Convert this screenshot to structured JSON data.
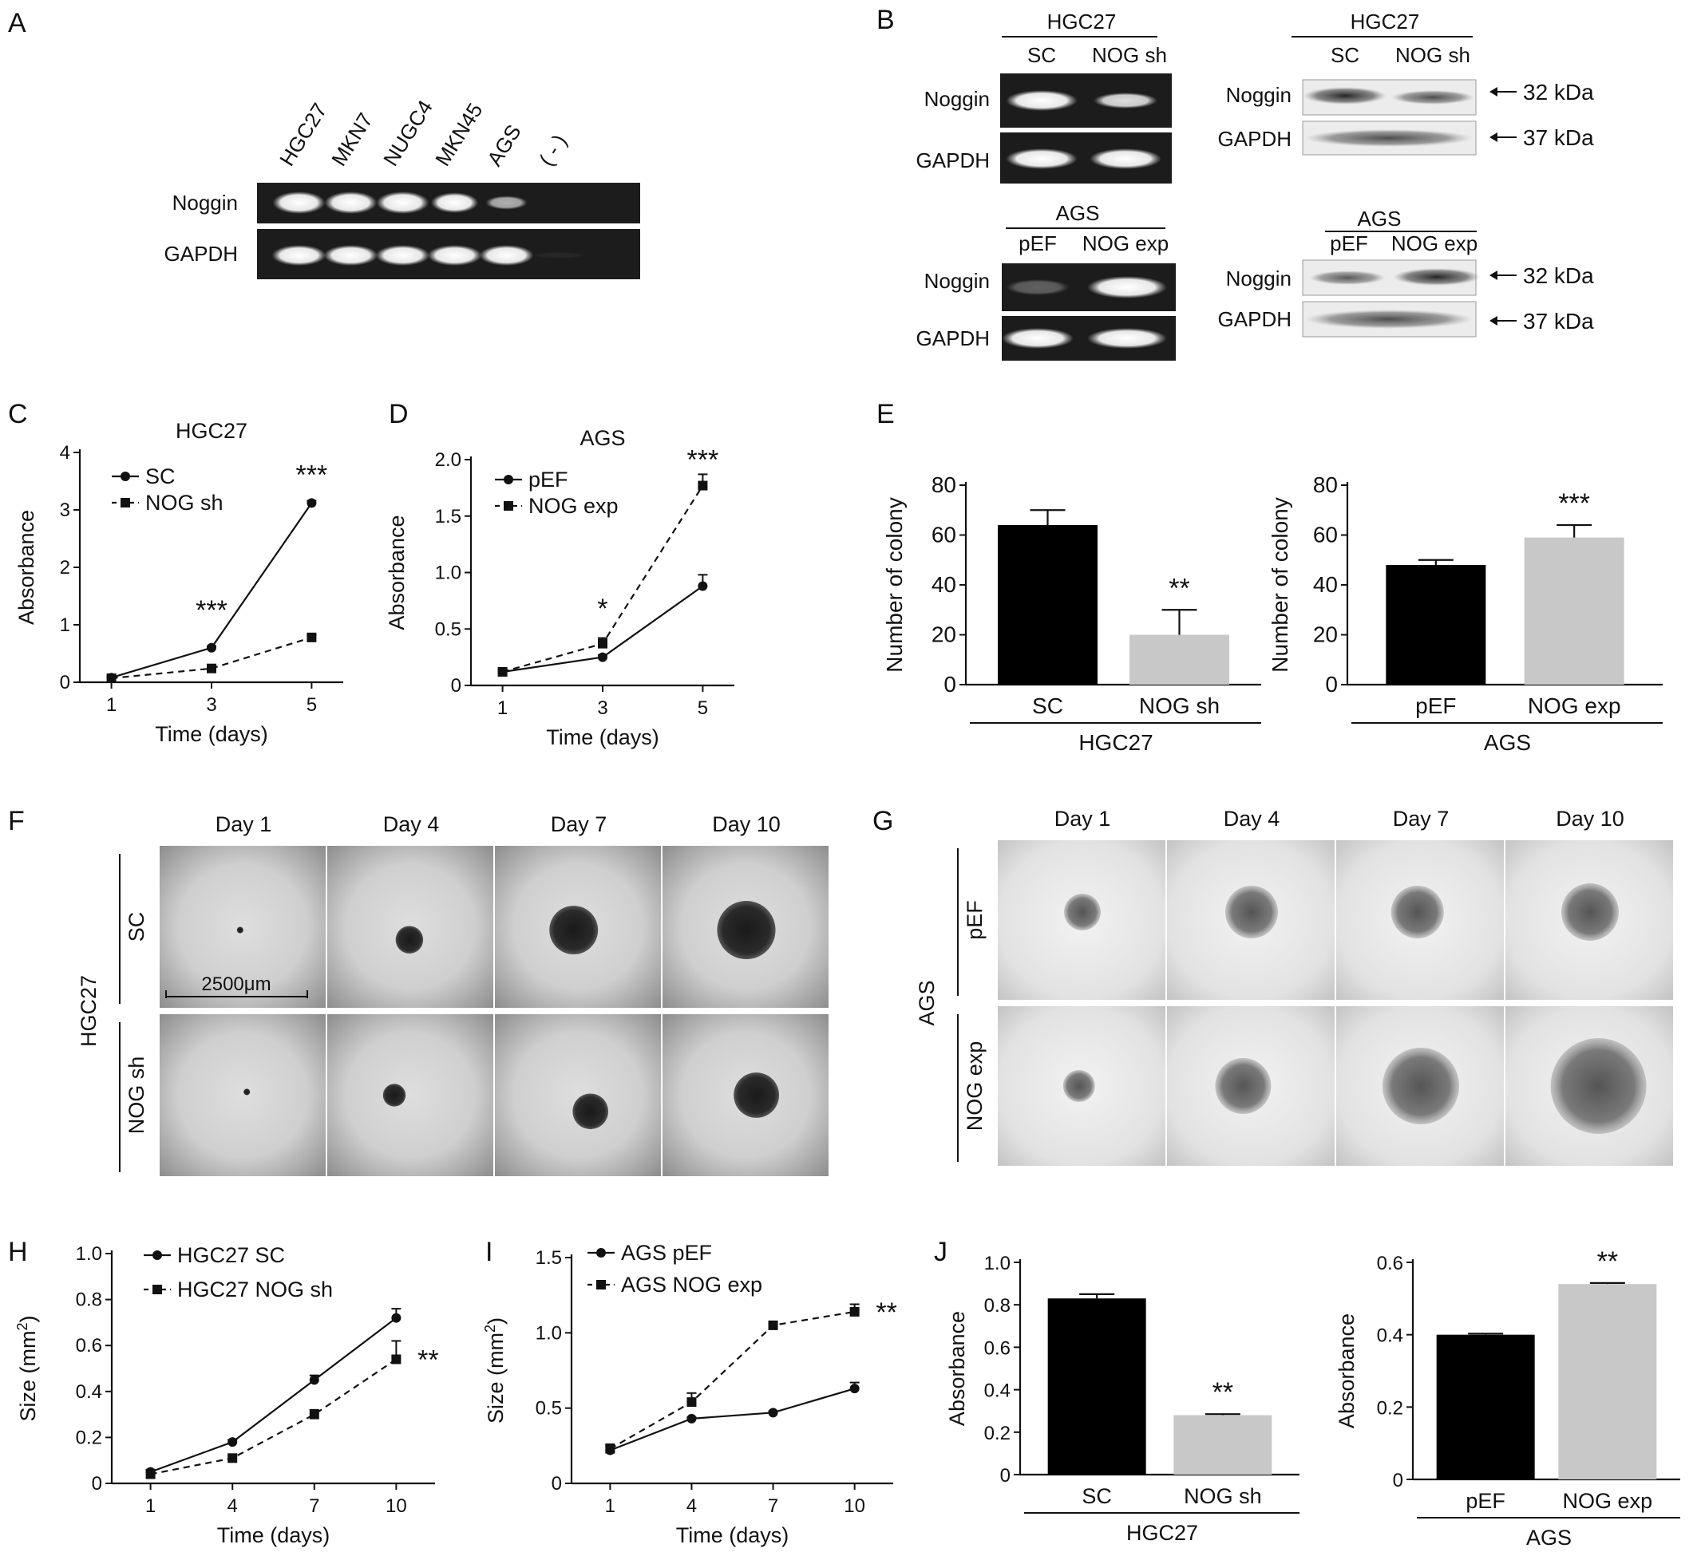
{
  "panels": {
    "A": {
      "label": "A",
      "lanes": [
        "HGC27",
        "MKN7",
        "NUGC4",
        "MKN45",
        "AGS",
        "( - )"
      ],
      "rows": [
        "Noggin",
        "GAPDH"
      ],
      "noggin_intensity": [
        1,
        1,
        1,
        0.9,
        0.55,
        0
      ],
      "gapdh_intensity": [
        1,
        1,
        1,
        1,
        1,
        0.05
      ]
    },
    "B": {
      "label": "B",
      "hgc_title": "HGC27",
      "hgc_lanes": [
        "SC",
        "NOG sh"
      ],
      "ags_title": "AGS",
      "ags_lanes": [
        "pEF",
        "NOG exp"
      ],
      "rows": [
        "Noggin",
        "GAPDH"
      ],
      "kda_noggin": "32 kDa",
      "kda_gapdh": "37 kDa"
    },
    "C": {
      "label": "C",
      "chart_data": {
        "type": "line",
        "title": "HGC27",
        "xlabel": "Time (days)",
        "ylabel": "Absorbance",
        "x": [
          1,
          3,
          5
        ],
        "xticks": [
          "1",
          "3",
          "5"
        ],
        "ylim": [
          0,
          4
        ],
        "yticks": [
          "0",
          "1",
          "2",
          "3",
          "4"
        ],
        "series": [
          {
            "name": "SC",
            "values": [
              0.08,
              0.6,
              3.12
            ],
            "err": [
              0.02,
              0.03,
              0.04
            ],
            "marker": "circle",
            "dash": false
          },
          {
            "name": "NOG sh",
            "values": [
              0.07,
              0.24,
              0.78
            ],
            "err": [
              0.02,
              0.03,
              0.04
            ],
            "marker": "square",
            "dash": true
          }
        ],
        "annotations": [
          {
            "x": 3,
            "y": 1.1,
            "text": "***"
          },
          {
            "x": 5,
            "y": 3.45,
            "text": "***"
          }
        ],
        "legend": "top-left"
      }
    },
    "D": {
      "label": "D",
      "chart_data": {
        "type": "line",
        "title": "AGS",
        "xlabel": "Time (days)",
        "ylabel": "Absorbance",
        "x": [
          1,
          3,
          5
        ],
        "xticks": [
          "1",
          "3",
          "5"
        ],
        "ylim": [
          0,
          2.0
        ],
        "yticks": [
          "0",
          "0.5",
          "1.0",
          "1.5",
          "2.0"
        ],
        "series": [
          {
            "name": "pEF",
            "values": [
              0.12,
              0.25,
              0.88
            ],
            "err": [
              0.02,
              0.02,
              0.1
            ],
            "marker": "circle",
            "dash": false
          },
          {
            "name": "NOG exp",
            "values": [
              0.12,
              0.37,
              1.77
            ],
            "err": [
              0.02,
              0.05,
              0.1
            ],
            "marker": "square",
            "dash": true
          }
        ],
        "annotations": [
          {
            "x": 3,
            "y": 0.6,
            "text": "*"
          },
          {
            "x": 5,
            "y": 1.92,
            "text": "***"
          }
        ],
        "legend": "top-left"
      }
    },
    "E": {
      "label": "E",
      "chart_data": [
        {
          "type": "bar",
          "ylabel": "Number of colony",
          "categories": [
            "SC",
            "NOG sh"
          ],
          "group_label": "HGC27",
          "values": [
            64,
            20
          ],
          "err": [
            6,
            10
          ],
          "colors": [
            "#000000",
            "#c8c8c8"
          ],
          "ylim": [
            0,
            80
          ],
          "yticks": [
            "0",
            "20",
            "40",
            "60",
            "80"
          ],
          "annotations": [
            {
              "index": 1,
              "text": "**"
            }
          ]
        },
        {
          "type": "bar",
          "ylabel": "Number of colony",
          "categories": [
            "pEF",
            "NOG exp"
          ],
          "group_label": "AGS",
          "values": [
            48,
            59
          ],
          "err": [
            2,
            5
          ],
          "colors": [
            "#000000",
            "#c8c8c8"
          ],
          "ylim": [
            0,
            80
          ],
          "yticks": [
            "0",
            "20",
            "40",
            "60",
            "80"
          ],
          "annotations": [
            {
              "index": 1,
              "text": "***"
            }
          ]
        }
      ]
    },
    "F": {
      "label": "F",
      "days": [
        "Day 1",
        "Day 4",
        "Day 7",
        "Day 10"
      ],
      "rows": [
        "SC",
        "NOG sh"
      ],
      "group": "HGC27",
      "scalebar": "2500μm",
      "sphere_size": [
        [
          0.04,
          0.17,
          0.3,
          0.36
        ],
        [
          0.04,
          0.14,
          0.22,
          0.28
        ]
      ]
    },
    "G": {
      "label": "G",
      "days": [
        "Day 1",
        "Day 4",
        "Day 7",
        "Day 10"
      ],
      "rows": [
        "pEF",
        "NOG exp"
      ],
      "group": "AGS",
      "sphere_size": [
        [
          0.23,
          0.33,
          0.33,
          0.36
        ],
        [
          0.2,
          0.35,
          0.48,
          0.6
        ]
      ]
    },
    "H": {
      "label": "H",
      "chart_data": {
        "type": "line",
        "xlabel": "Time (days)",
        "ylabel": "Size (mm²)",
        "x": [
          1,
          4,
          7,
          10
        ],
        "xticks": [
          "1",
          "4",
          "7",
          "10"
        ],
        "ylim": [
          0,
          1.0
        ],
        "yticks": [
          "0",
          "0.2",
          "0.4",
          "0.6",
          "0.8",
          "1.0"
        ],
        "series": [
          {
            "name": "HGC27 SC",
            "values": [
              0.05,
              0.18,
              0.45,
              0.72
            ],
            "err": [
              0.01,
              0.01,
              0.02,
              0.04
            ],
            "marker": "circle",
            "dash": false
          },
          {
            "name": "HGC27 NOG sh",
            "values": [
              0.04,
              0.11,
              0.3,
              0.54
            ],
            "err": [
              0.01,
              0.01,
              0.02,
              0.08
            ],
            "marker": "square",
            "dash": true
          }
        ],
        "annotations": [
          {
            "x": 10,
            "y": 0.54,
            "text": "**",
            "dx": 1
          }
        ],
        "legend": "top-left"
      }
    },
    "I": {
      "label": "I",
      "chart_data": {
        "type": "line",
        "xlabel": "Time (days)",
        "ylabel": "Size (mm²)",
        "x": [
          1,
          4,
          7,
          10
        ],
        "xticks": [
          "1",
          "4",
          "7",
          "10"
        ],
        "ylim": [
          0,
          1.5
        ],
        "yticks": [
          "0",
          "0.5",
          "1.0",
          "1.5"
        ],
        "series": [
          {
            "name": "AGS pEF",
            "values": [
              0.22,
              0.43,
              0.47,
              0.63
            ],
            "err": [
              0.03,
              0.01,
              0.01,
              0.04
            ],
            "marker": "circle",
            "dash": false
          },
          {
            "name": "AGS NOG exp",
            "values": [
              0.23,
              0.54,
              1.05,
              1.14
            ],
            "err": [
              0.03,
              0.06,
              0.01,
              0.05
            ],
            "marker": "square",
            "dash": true
          }
        ],
        "annotations": [
          {
            "x": 10,
            "y": 1.14,
            "text": "**",
            "dx": 1
          }
        ],
        "legend": "top-left"
      }
    },
    "J": {
      "label": "J",
      "chart_data": [
        {
          "type": "bar",
          "ylabel": "Absorbance",
          "categories": [
            "SC",
            "NOG sh"
          ],
          "group_label": "HGC27",
          "values": [
            0.83,
            0.28
          ],
          "err": [
            0.02,
            0.005
          ],
          "colors": [
            "#000000",
            "#c8c8c8"
          ],
          "ylim": [
            0,
            1.0
          ],
          "yticks": [
            "0",
            "0.2",
            "0.4",
            "0.6",
            "0.8",
            "1.0"
          ],
          "annotations": [
            {
              "index": 1,
              "text": "**"
            }
          ]
        },
        {
          "type": "bar",
          "ylabel": "Absorbance",
          "categories": [
            "pEF",
            "NOG exp"
          ],
          "group_label": "AGS",
          "values": [
            0.4,
            0.54
          ],
          "err": [
            0.003,
            0.003
          ],
          "colors": [
            "#000000",
            "#c8c8c8"
          ],
          "ylim": [
            0,
            0.6
          ],
          "yticks": [
            "0",
            "0.2",
            "0.4",
            "0.6"
          ],
          "annotations": [
            {
              "index": 1,
              "text": "**"
            }
          ]
        }
      ]
    }
  }
}
